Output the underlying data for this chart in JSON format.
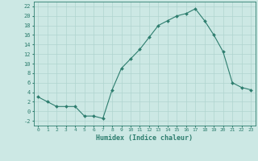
{
  "x": [
    0,
    1,
    2,
    3,
    4,
    5,
    6,
    7,
    8,
    9,
    10,
    11,
    12,
    13,
    14,
    15,
    16,
    17,
    18,
    19,
    20,
    21,
    22,
    23
  ],
  "y": [
    3,
    2,
    1,
    1,
    1,
    -1,
    -1,
    -1.5,
    4.5,
    9,
    11,
    13,
    15.5,
    18,
    19,
    20,
    20.5,
    21.5,
    19,
    16,
    12.5,
    6,
    5,
    4.5
  ],
  "line_color": "#2d7d6e",
  "marker": "D",
  "marker_size": 2,
  "bg_color": "#cce8e4",
  "grid_color": "#b0d4cf",
  "xlabel": "Humidex (Indice chaleur)",
  "ylabel_ticks": [
    -2,
    0,
    2,
    4,
    6,
    8,
    10,
    12,
    14,
    16,
    18,
    20,
    22
  ],
  "ylim": [
    -3,
    23
  ],
  "xlim": [
    -0.5,
    23.5
  ],
  "tick_color": "#2d7d6e",
  "label_color": "#2d7d6e"
}
